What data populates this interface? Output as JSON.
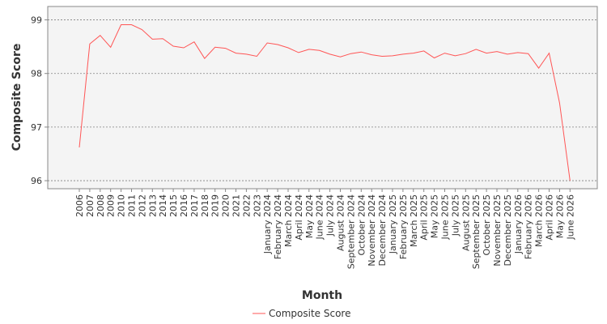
{
  "chart_data": {
    "type": "line",
    "title": "",
    "xlabel": "Month",
    "ylabel": "Composite Score",
    "ylim": [
      95.85,
      99.25
    ],
    "yticks": [
      96,
      97,
      98,
      99
    ],
    "grid": true,
    "legend_position": "bottom",
    "series_color": "#ff5555",
    "plot_background": "#f4f4f4",
    "grid_color": "#808080",
    "categories": [
      "2006",
      "2007",
      "2008",
      "2009",
      "2010",
      "2011",
      "2012",
      "2013",
      "2014",
      "2015",
      "2016",
      "2017",
      "2018",
      "2019",
      "2020",
      "2021",
      "2022",
      "2023",
      "January 2024",
      "February 2024",
      "March 2024",
      "April 2024",
      "May 2024",
      "June 2024",
      "July 2024",
      "August 2024",
      "September 2024",
      "October 2024",
      "November 2024",
      "December 2024",
      "January 2025",
      "February 2025",
      "March 2025",
      "April 2025",
      "May 2025",
      "June 2025",
      "July 2025",
      "August 2025",
      "September 2025",
      "October 2025",
      "November 2025",
      "December 2025",
      "January 2026",
      "February 2026",
      "March 2026",
      "April 2026",
      "May 2026",
      "June 2026"
    ],
    "series": [
      {
        "name": "Composite Score",
        "values": [
          96.62,
          98.55,
          98.71,
          98.49,
          98.91,
          98.91,
          98.82,
          98.64,
          98.65,
          98.51,
          98.48,
          98.59,
          98.28,
          98.49,
          98.47,
          98.38,
          98.36,
          98.32,
          98.57,
          98.54,
          98.48,
          98.39,
          98.45,
          98.43,
          98.36,
          98.31,
          98.37,
          98.4,
          98.35,
          98.32,
          98.33,
          98.36,
          98.38,
          98.42,
          98.29,
          98.38,
          98.33,
          98.37,
          98.45,
          98.38,
          98.41,
          98.36,
          98.39,
          98.37,
          98.1,
          98.38,
          97.45,
          96.0
        ]
      }
    ]
  }
}
